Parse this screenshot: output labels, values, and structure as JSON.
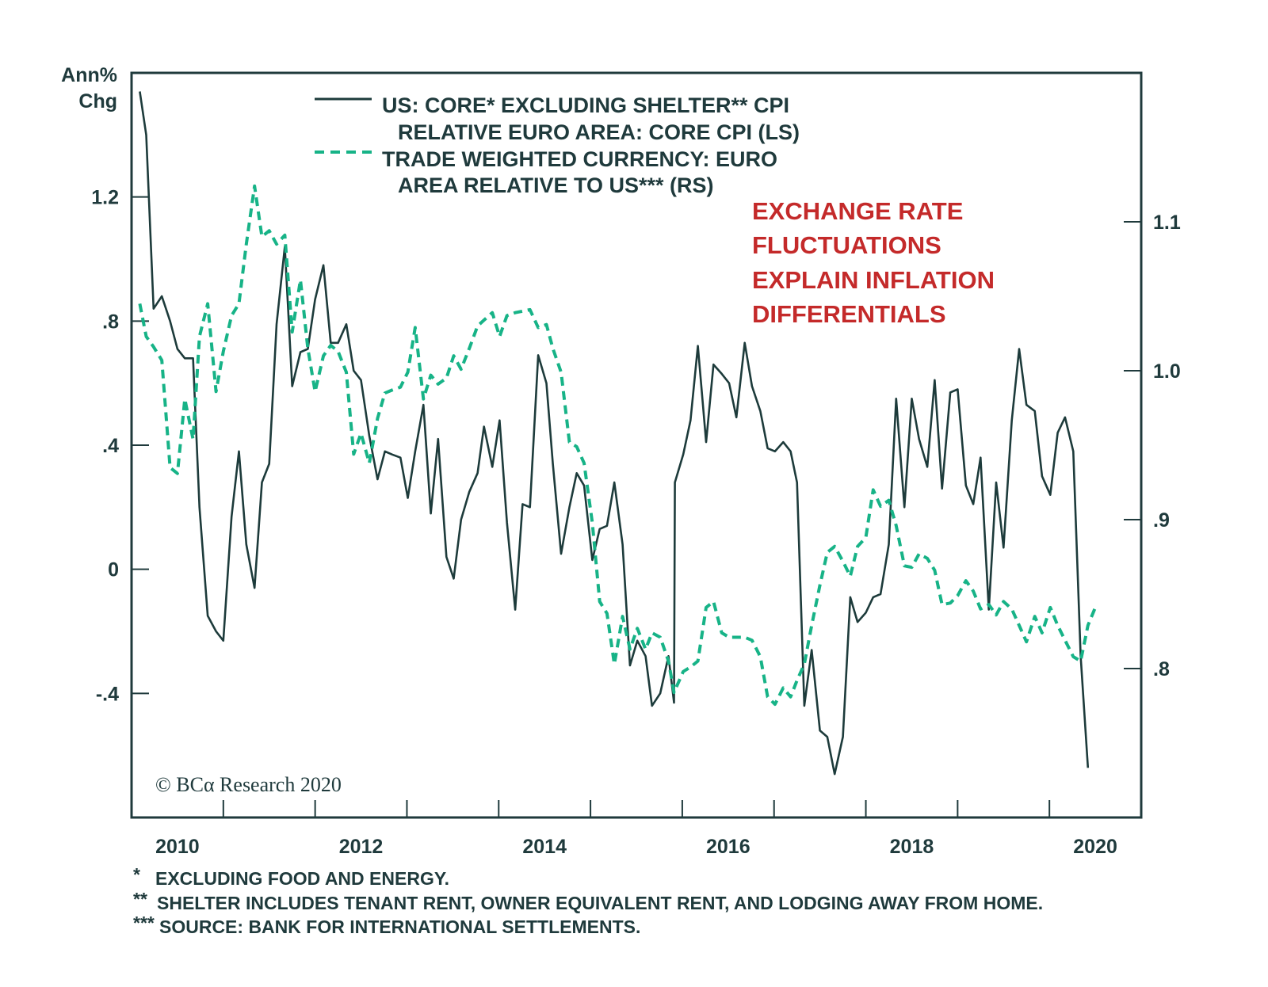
{
  "chart_data": {
    "type": "line",
    "left_axis": {
      "label_lines": [
        "Ann%",
        "Chg"
      ],
      "ylim": [
        -0.8,
        1.6
      ],
      "ticks": [
        1.2,
        0.8,
        0.4,
        0,
        -0.4
      ],
      "tick_labels": [
        "1.2",
        ".8",
        ".4",
        "0",
        "-.4"
      ]
    },
    "right_axis": {
      "ylim": [
        0.7,
        1.2
      ],
      "ticks": [
        1.1,
        1.0,
        0.9,
        0.8
      ],
      "tick_labels": [
        "1.1",
        "1.0",
        ".9",
        ".8"
      ]
    },
    "x_axis": {
      "xlim": [
        2010,
        2021
      ],
      "tick_positions": [
        2011,
        2012,
        2013,
        2014,
        2015,
        2016,
        2017,
        2018,
        2019,
        2020
      ],
      "labels": [
        "2010",
        "2012",
        "2014",
        "2016",
        "2018",
        "2020"
      ],
      "label_years": [
        2010,
        2012,
        2014,
        2016,
        2018,
        2020
      ]
    },
    "grid": false,
    "legend_placement": "top-left",
    "series": [
      {
        "name_lines": [
          "US: CORE* EXCLUDING SHELTER** CPI",
          "RELATIVE EURO AREA: CORE CPI (LS)"
        ],
        "axis": "left",
        "style": "solid",
        "color": "#1d3b3b",
        "x": [
          2010.09,
          2010.16,
          2010.24,
          2010.33,
          2010.42,
          2010.5,
          2010.58,
          2010.67,
          2010.74,
          2010.83,
          2010.92,
          2011.0,
          2011.09,
          2011.17,
          2011.25,
          2011.34,
          2011.42,
          2011.5,
          2011.58,
          2011.67,
          2011.75,
          2011.84,
          2011.92,
          2012.0,
          2012.09,
          2012.17,
          2012.25,
          2012.34,
          2012.42,
          2012.5,
          2012.59,
          2012.68,
          2012.76,
          2012.84,
          2012.93,
          2013.01,
          2013.09,
          2013.18,
          2013.26,
          2013.34,
          2013.43,
          2013.51,
          2013.59,
          2013.68,
          2013.77,
          2013.84,
          2013.93,
          2014.01,
          2014.09,
          2014.18,
          2014.26,
          2014.34,
          2014.43,
          2014.52,
          2014.59,
          2014.68,
          2014.77,
          2014.85,
          2014.93,
          2015.02,
          2015.1,
          2015.18,
          2015.26,
          2015.35,
          2015.43,
          2015.51,
          2015.6,
          2015.67,
          2015.76,
          2015.85,
          2015.91,
          2015.92,
          2016.01,
          2016.09,
          2016.17,
          2016.26,
          2016.34,
          2016.43,
          2016.51,
          2016.59,
          2016.68,
          2016.76,
          2016.85,
          2016.93,
          2017.01,
          2017.1,
          2017.18,
          2017.25,
          2017.33,
          2017.41,
          2017.5,
          2017.58,
          2017.66,
          2017.75,
          2017.83,
          2017.91,
          2018.0,
          2018.08,
          2018.16,
          2018.25,
          2018.33,
          2018.42,
          2018.5,
          2018.58,
          2018.67,
          2018.75,
          2018.83,
          2018.92,
          2019.0,
          2019.09,
          2019.17,
          2019.25,
          2019.34,
          2019.42,
          2019.5,
          2019.59,
          2019.67,
          2019.75,
          2019.84,
          2019.92,
          2020.01,
          2020.09,
          2020.17,
          2020.26,
          2020.34,
          2020.42
        ],
        "y": [
          1.54,
          1.4,
          0.84,
          0.88,
          0.8,
          0.71,
          0.68,
          0.68,
          0.2,
          -0.15,
          -0.2,
          -0.23,
          0.17,
          0.38,
          0.08,
          -0.06,
          0.28,
          0.34,
          0.79,
          1.04,
          0.59,
          0.7,
          0.71,
          0.87,
          0.98,
          0.73,
          0.73,
          0.79,
          0.64,
          0.61,
          0.43,
          0.29,
          0.38,
          0.37,
          0.36,
          0.23,
          0.38,
          0.53,
          0.18,
          0.42,
          0.04,
          -0.03,
          0.16,
          0.25,
          0.31,
          0.46,
          0.33,
          0.48,
          0.15,
          -0.13,
          0.21,
          0.2,
          0.69,
          0.6,
          0.34,
          0.05,
          0.2,
          0.31,
          0.27,
          0.03,
          0.13,
          0.14,
          0.28,
          0.08,
          -0.31,
          -0.23,
          -0.28,
          -0.44,
          -0.4,
          -0.28,
          -0.43,
          0.28,
          0.37,
          0.48,
          0.72,
          0.41,
          0.66,
          0.63,
          0.6,
          0.49,
          0.73,
          0.59,
          0.51,
          0.39,
          0.38,
          0.41,
          0.38,
          0.28,
          -0.44,
          -0.26,
          -0.52,
          -0.54,
          -0.66,
          -0.54,
          -0.09,
          -0.17,
          -0.14,
          -0.09,
          -0.08,
          0.08,
          0.55,
          0.2,
          0.55,
          0.42,
          0.33,
          0.61,
          0.26,
          0.57,
          0.58,
          0.27,
          0.21,
          0.36,
          -0.13,
          0.28,
          0.07,
          0.48,
          0.71,
          0.53,
          0.51,
          0.3,
          0.24,
          0.44,
          0.49,
          0.38,
          -0.28,
          -0.64
        ]
      },
      {
        "name_lines": [
          "TRADE WEIGHTED CURRENCY: EURO",
          "AREA RELATIVE TO US*** (RS)"
        ],
        "axis": "right",
        "style": "dashed",
        "color": "#17b387",
        "x": [
          2010.09,
          2010.16,
          2010.24,
          2010.33,
          2010.42,
          2010.5,
          2010.58,
          2010.67,
          2010.74,
          2010.83,
          2010.92,
          2011.0,
          2011.09,
          2011.17,
          2011.25,
          2011.34,
          2011.42,
          2011.5,
          2011.58,
          2011.67,
          2011.75,
          2011.84,
          2011.92,
          2012.0,
          2012.09,
          2012.17,
          2012.25,
          2012.34,
          2012.42,
          2012.5,
          2012.59,
          2012.68,
          2012.76,
          2012.84,
          2012.93,
          2013.01,
          2013.09,
          2013.18,
          2013.26,
          2013.34,
          2013.43,
          2013.51,
          2013.59,
          2013.68,
          2013.77,
          2013.84,
          2013.93,
          2014.01,
          2014.09,
          2014.18,
          2014.26,
          2014.34,
          2014.43,
          2014.52,
          2014.59,
          2014.68,
          2014.77,
          2014.85,
          2014.93,
          2015.02,
          2015.1,
          2015.18,
          2015.26,
          2015.35,
          2015.43,
          2015.51,
          2015.6,
          2015.67,
          2015.76,
          2015.85,
          2015.91,
          2016.01,
          2016.09,
          2016.17,
          2016.26,
          2016.34,
          2016.43,
          2016.51,
          2016.59,
          2016.68,
          2016.76,
          2016.85,
          2016.93,
          2017.01,
          2017.1,
          2017.18,
          2017.25,
          2017.33,
          2017.41,
          2017.5,
          2017.58,
          2017.66,
          2017.75,
          2017.83,
          2017.91,
          2018.0,
          2018.08,
          2018.16,
          2018.25,
          2018.33,
          2018.42,
          2018.5,
          2018.58,
          2018.67,
          2018.75,
          2018.83,
          2018.92,
          2019.0,
          2019.09,
          2019.17,
          2019.25,
          2019.34,
          2019.42,
          2019.5,
          2019.59,
          2019.67,
          2019.75,
          2019.84,
          2019.92,
          2020.01,
          2020.09,
          2020.17,
          2020.26,
          2020.34,
          2020.42,
          2020.5
        ],
        "y": [
          1.045,
          1.023,
          1.016,
          1.007,
          0.935,
          0.931,
          0.981,
          0.954,
          1.023,
          1.045,
          0.986,
          1.013,
          1.037,
          1.045,
          1.085,
          1.124,
          1.09,
          1.094,
          1.085,
          1.091,
          1.026,
          1.061,
          1.015,
          0.986,
          1.01,
          1.017,
          1.013,
          0.999,
          0.944,
          0.958,
          0.938,
          0.968,
          0.985,
          0.987,
          0.989,
          0.999,
          1.029,
          0.981,
          0.997,
          0.991,
          0.995,
          1.01,
          1.001,
          1.015,
          1.03,
          1.034,
          1.039,
          1.023,
          1.037,
          1.039,
          1.04,
          1.041,
          1.029,
          1.031,
          1.015,
          0.999,
          0.952,
          0.949,
          0.938,
          0.898,
          0.845,
          0.837,
          0.803,
          0.835,
          0.813,
          0.827,
          0.813,
          0.824,
          0.821,
          0.805,
          0.784,
          0.798,
          0.801,
          0.805,
          0.841,
          0.845,
          0.824,
          0.821,
          0.821,
          0.821,
          0.819,
          0.808,
          0.781,
          0.776,
          0.787,
          0.781,
          0.792,
          0.803,
          0.829,
          0.856,
          0.878,
          0.882,
          0.872,
          0.862,
          0.882,
          0.888,
          0.92,
          0.909,
          0.913,
          0.896,
          0.869,
          0.868,
          0.877,
          0.874,
          0.866,
          0.843,
          0.844,
          0.849,
          0.859,
          0.852,
          0.84,
          0.843,
          0.836,
          0.845,
          0.84,
          0.829,
          0.818,
          0.835,
          0.824,
          0.841,
          0.829,
          0.819,
          0.808,
          0.805,
          0.829,
          0.841
        ]
      }
    ],
    "annotation_lines": [
      "EXCHANGE RATE",
      "FLUCTUATIONS",
      "EXPLAIN INFLATION",
      "DIFFERENTIALS"
    ],
    "annotation_color": "#c42a2a",
    "copyright": "© BCα Research 2020",
    "footnotes": [
      {
        "mark": "*",
        "text": "EXCLUDING FOOD AND ENERGY."
      },
      {
        "mark": "**",
        "text": "SHELTER INCLUDES TENANT RENT, OWNER EQUIVALENT RENT, AND LODGING AWAY FROM HOME."
      },
      {
        "mark": "***",
        "text": "SOURCE: BANK FOR INTERNATIONAL SETTLEMENTS."
      }
    ]
  }
}
